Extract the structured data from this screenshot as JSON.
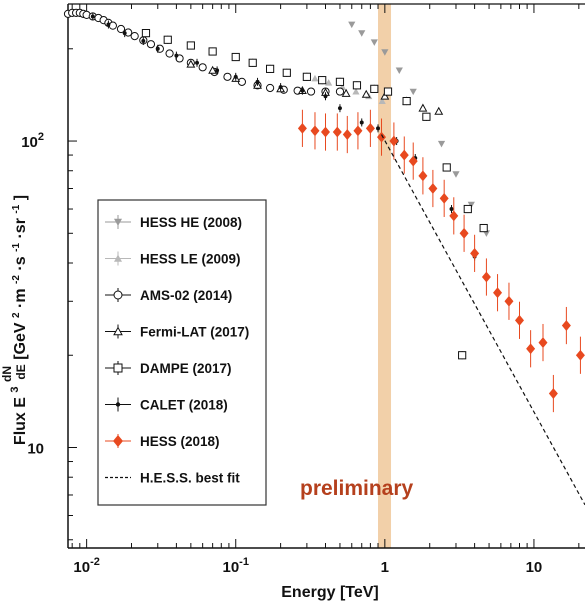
{
  "chart_data": {
    "type": "scatter",
    "x_label": "Energy [TeV]",
    "y_label_prefix": "Flux E",
    "y_label_exp": "3",
    "y_label_frac_num": "dN",
    "y_label_frac_den": "dE",
    "y_label_units": "[GeV",
    "y_label_units_sup1": "2",
    "y_label_units_mid": "·m",
    "y_label_units_sup2": "-2",
    "y_label_units_mid2": "·s",
    "y_label_units_sup3": "-1",
    "y_label_units_mid3": "·sr",
    "y_label_units_sup4": "-1",
    "y_label_units_end": "]",
    "x_scale": "log",
    "y_scale": "log",
    "xlim": [
      0.0075,
      22
    ],
    "ylim": [
      4.7,
      280
    ],
    "x_ticks": [
      {
        "value": 0.01,
        "base": "10",
        "exp": "-2"
      },
      {
        "value": 0.1,
        "base": "10",
        "exp": "-1"
      },
      {
        "value": 1,
        "base": "1",
        "exp": ""
      },
      {
        "value": 10,
        "base": "10",
        "exp": ""
      }
    ],
    "y_ticks": [
      {
        "value": 10,
        "base": "10",
        "exp": ""
      },
      {
        "value": 100,
        "base": "10",
        "exp": "2"
      }
    ],
    "annotation": {
      "text": "preliminary",
      "color": "#b5401d"
    },
    "highlight_band": {
      "x_from": 0.9,
      "x_to": 1.1,
      "color": "#f0c89a"
    },
    "legend_position": "lower-left",
    "series": [
      {
        "name": "HESS HE (2008)",
        "marker": "filled-triangle-down",
        "color": "#9a9a9a",
        "points": [
          [
            0.6,
            240
          ],
          [
            0.7,
            225
          ],
          [
            0.85,
            210
          ],
          [
            1.0,
            195
          ],
          [
            1.25,
            170
          ],
          [
            1.55,
            145
          ],
          [
            1.9,
            120
          ],
          [
            2.4,
            98
          ],
          [
            3.0,
            78
          ],
          [
            3.8,
            62
          ],
          [
            4.8,
            50
          ]
        ]
      },
      {
        "name": "HESS LE (2009)",
        "marker": "filled-triangle-up",
        "color": "#b8b8b8",
        "points": [
          [
            0.34,
            160
          ],
          [
            0.42,
            155
          ],
          [
            0.52,
            150
          ],
          [
            0.64,
            145
          ],
          [
            0.78,
            140
          ],
          [
            0.96,
            135
          ]
        ]
      },
      {
        "name": "AMS-02 (2014)",
        "marker": "open-circle",
        "color": "#111111",
        "points": [
          [
            0.0075,
            260
          ],
          [
            0.008,
            262
          ],
          [
            0.0085,
            262
          ],
          [
            0.009,
            262
          ],
          [
            0.0095,
            260
          ],
          [
            0.01,
            258
          ],
          [
            0.011,
            255
          ],
          [
            0.012,
            252
          ],
          [
            0.013,
            248
          ],
          [
            0.014,
            243
          ],
          [
            0.015,
            238
          ],
          [
            0.017,
            232
          ],
          [
            0.019,
            226
          ],
          [
            0.021,
            220
          ],
          [
            0.024,
            213
          ],
          [
            0.027,
            207
          ],
          [
            0.031,
            200
          ],
          [
            0.036,
            193
          ],
          [
            0.042,
            186
          ],
          [
            0.05,
            180
          ],
          [
            0.06,
            174
          ],
          [
            0.072,
            168
          ],
          [
            0.088,
            162
          ],
          [
            0.11,
            156
          ],
          [
            0.14,
            152
          ],
          [
            0.17,
            149
          ],
          [
            0.21,
            147
          ],
          [
            0.26,
            146
          ],
          [
            0.32,
            145
          ],
          [
            0.4,
            145
          ],
          [
            0.5,
            145
          ]
        ]
      },
      {
        "name": "Fermi-LAT (2017)",
        "marker": "open-triangle-up",
        "color": "#111111",
        "points": [
          [
            0.05,
            178
          ],
          [
            0.07,
            170
          ],
          [
            0.1,
            160
          ],
          [
            0.14,
            152
          ],
          [
            0.2,
            148
          ],
          [
            0.28,
            146
          ],
          [
            0.4,
            144
          ],
          [
            0.55,
            143
          ],
          [
            0.75,
            142
          ],
          [
            1.0,
            140
          ],
          [
            1.4,
            135
          ],
          [
            1.8,
            128
          ],
          [
            2.3,
            125
          ]
        ]
      },
      {
        "name": "DAMPE (2017)",
        "marker": "open-square",
        "color": "#111111",
        "points": [
          [
            0.025,
            225
          ],
          [
            0.035,
            214
          ],
          [
            0.05,
            205
          ],
          [
            0.07,
            196
          ],
          [
            0.1,
            188
          ],
          [
            0.13,
            180
          ],
          [
            0.17,
            172
          ],
          [
            0.22,
            167
          ],
          [
            0.3,
            162
          ],
          [
            0.38,
            158
          ],
          [
            0.5,
            156
          ],
          [
            0.65,
            152
          ],
          [
            0.85,
            148
          ],
          [
            1.05,
            145
          ],
          [
            1.4,
            135
          ],
          [
            1.9,
            120
          ],
          [
            2.6,
            82
          ],
          [
            3.6,
            60
          ],
          [
            4.6,
            52
          ],
          [
            3.3,
            20
          ]
        ]
      },
      {
        "name": "CALET (2018)",
        "marker": "filled-circle-small",
        "color": "#111111",
        "points": [
          [
            0.011,
            255
          ],
          [
            0.014,
            240
          ],
          [
            0.018,
            225
          ],
          [
            0.024,
            212
          ],
          [
            0.03,
            200
          ],
          [
            0.04,
            190
          ],
          [
            0.055,
            180
          ],
          [
            0.075,
            170
          ],
          [
            0.1,
            162
          ],
          [
            0.14,
            156
          ],
          [
            0.2,
            150
          ],
          [
            0.28,
            146
          ],
          [
            0.4,
            140
          ],
          [
            0.5,
            128
          ],
          [
            0.7,
            115
          ],
          [
            0.9,
            110
          ],
          [
            1.2,
            100
          ],
          [
            1.6,
            88
          ],
          [
            2.1,
            70
          ],
          [
            2.8,
            60
          ],
          [
            4.0,
            42
          ]
        ]
      },
      {
        "name": "HESS (2018)",
        "marker": "filled-diamond",
        "color": "#e8491f",
        "points": [
          [
            0.28,
            110
          ],
          [
            0.34,
            108
          ],
          [
            0.4,
            107
          ],
          [
            0.48,
            107
          ],
          [
            0.56,
            105
          ],
          [
            0.66,
            108
          ],
          [
            0.8,
            110
          ],
          [
            0.95,
            103
          ],
          [
            1.15,
            100
          ],
          [
            1.35,
            90
          ],
          [
            1.55,
            86
          ],
          [
            1.8,
            77
          ],
          [
            2.1,
            70
          ],
          [
            2.5,
            65
          ],
          [
            2.9,
            57
          ],
          [
            3.4,
            50
          ],
          [
            4.0,
            43
          ],
          [
            4.8,
            36
          ],
          [
            5.7,
            32
          ],
          [
            6.8,
            30
          ],
          [
            8.0,
            26
          ],
          [
            9.5,
            21
          ],
          [
            11.5,
            22
          ],
          [
            13.5,
            15
          ],
          [
            16.5,
            25
          ],
          [
            20.5,
            20
          ]
        ]
      },
      {
        "name": "H.E.S.S. best fit",
        "marker": "dashed-line",
        "color": "#111111",
        "points": [
          [
            0.95,
            105
          ],
          [
            22,
            6.5
          ]
        ]
      }
    ]
  }
}
